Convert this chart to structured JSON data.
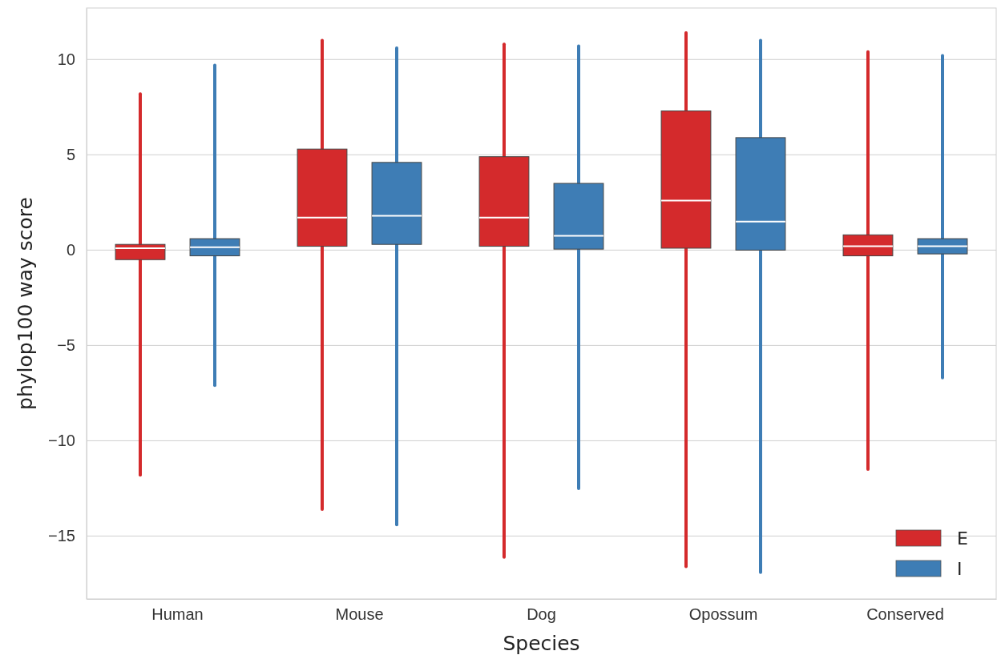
{
  "chart_data": {
    "type": "box",
    "xlabel": "Species",
    "ylabel": "phylop100 way score",
    "categories": [
      "Human",
      "Mouse",
      "Dog",
      "Opossum",
      "Conserved"
    ],
    "ylim": [
      -18.3,
      12.7
    ],
    "yticks": [
      {
        "value": -15,
        "label": "−15"
      },
      {
        "value": -10,
        "label": "−10"
      },
      {
        "value": -5,
        "label": "−5"
      },
      0,
      5,
      10
    ],
    "grid": "y",
    "legend": "bottom right",
    "series": [
      {
        "name": "E",
        "color": "#d42a2c",
        "boxes": [
          {
            "low": -11.8,
            "q1": -0.5,
            "median": 0.1,
            "q3": 0.3,
            "high": 8.2
          },
          {
            "low": -13.6,
            "q1": 0.2,
            "median": 1.7,
            "q3": 5.3,
            "high": 11.0
          },
          {
            "low": -16.1,
            "q1": 0.2,
            "median": 1.7,
            "q3": 4.9,
            "high": 10.8
          },
          {
            "low": -16.6,
            "q1": 0.1,
            "median": 2.6,
            "q3": 7.3,
            "high": 11.4
          },
          {
            "low": -11.5,
            "q1": -0.3,
            "median": 0.2,
            "q3": 0.8,
            "high": 10.4
          }
        ]
      },
      {
        "name": "I",
        "color": "#3e7db5",
        "boxes": [
          {
            "low": -7.1,
            "q1": -0.3,
            "median": 0.15,
            "q3": 0.6,
            "high": 9.7
          },
          {
            "low": -14.4,
            "q1": 0.3,
            "median": 1.8,
            "q3": 4.6,
            "high": 10.6
          },
          {
            "low": -12.5,
            "q1": 0.05,
            "median": 0.75,
            "q3": 3.5,
            "high": 10.7
          },
          {
            "low": -16.9,
            "q1": 0.0,
            "median": 1.5,
            "q3": 5.9,
            "high": 11.0
          },
          {
            "low": -6.7,
            "q1": -0.2,
            "median": 0.2,
            "q3": 0.6,
            "high": 10.2
          }
        ]
      }
    ]
  }
}
